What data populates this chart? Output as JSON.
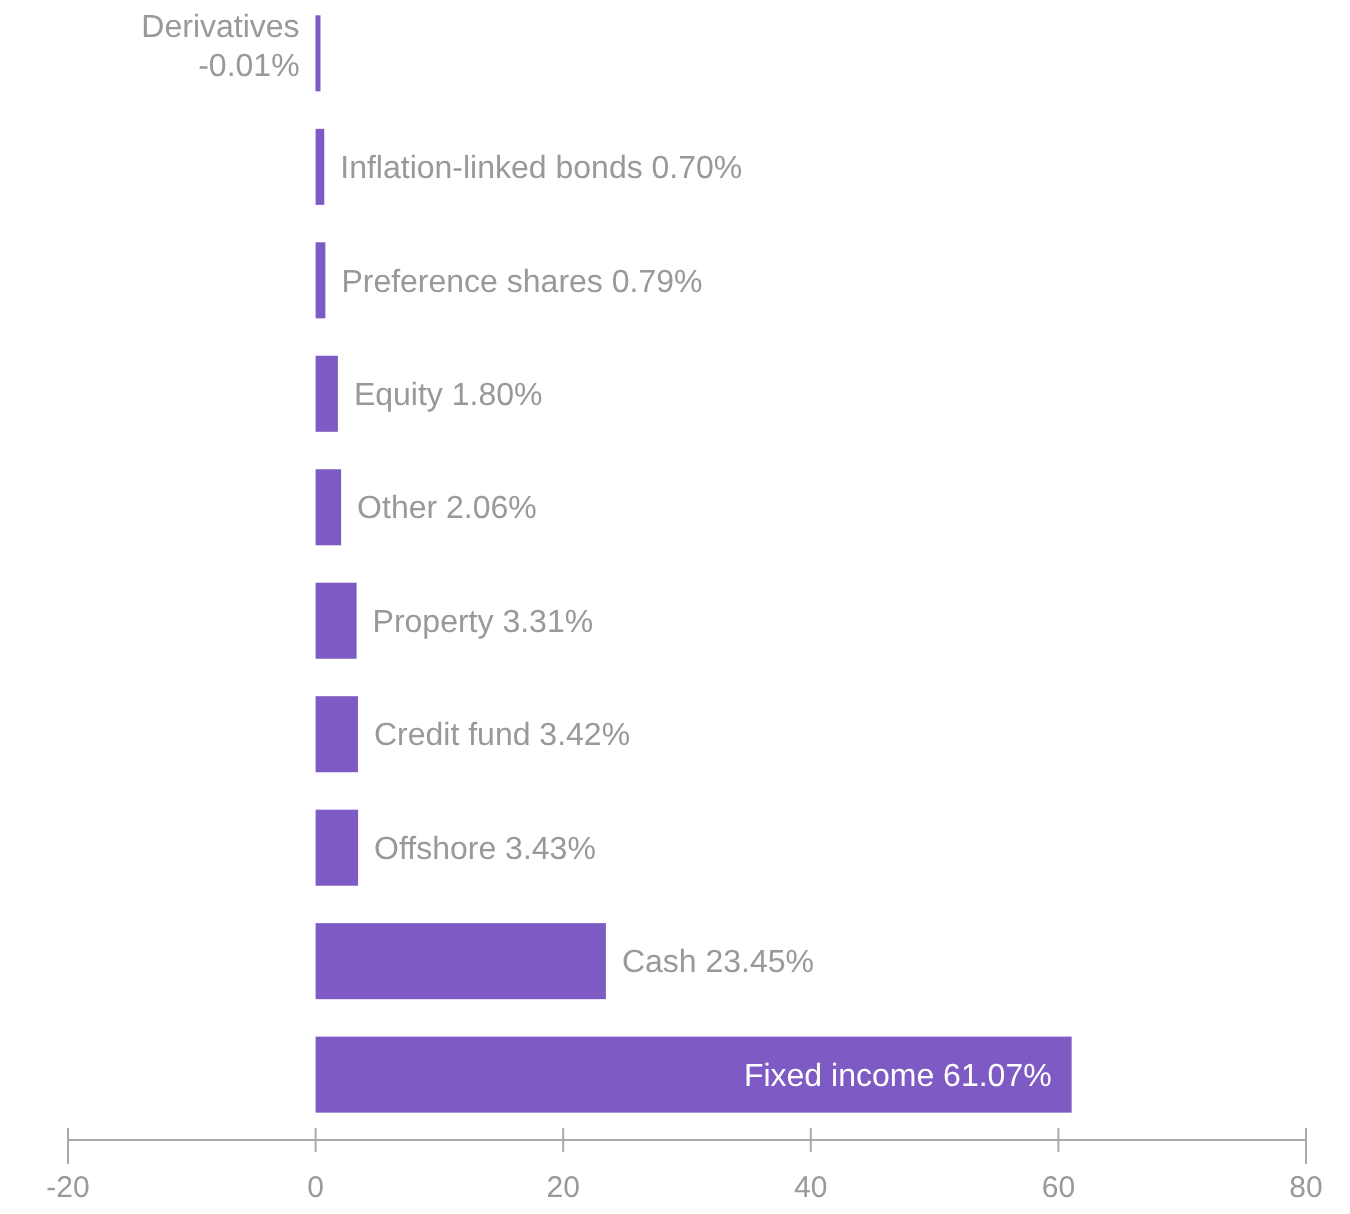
{
  "chart_data": {
    "type": "bar",
    "orientation": "horizontal",
    "categories": [
      "Derivatives",
      "Inflation-linked bonds",
      "Preference shares",
      "Equity",
      "Other",
      "Property",
      "Credit fund",
      "Offshore",
      "Cash",
      "Fixed income"
    ],
    "values": [
      -0.01,
      0.7,
      0.79,
      1.8,
      2.06,
      3.31,
      3.42,
      3.43,
      23.45,
      61.07
    ],
    "value_labels": [
      "-0.01%",
      "0.70%",
      "0.79%",
      "1.80%",
      "2.06%",
      "3.31%",
      "3.42%",
      "3.43%",
      "23.45%",
      "61.07%"
    ],
    "color": "#7e5bc4",
    "xlim": [
      -20,
      80
    ],
    "xticks": [
      -20,
      0,
      20,
      40,
      60,
      80
    ],
    "grid": false
  }
}
